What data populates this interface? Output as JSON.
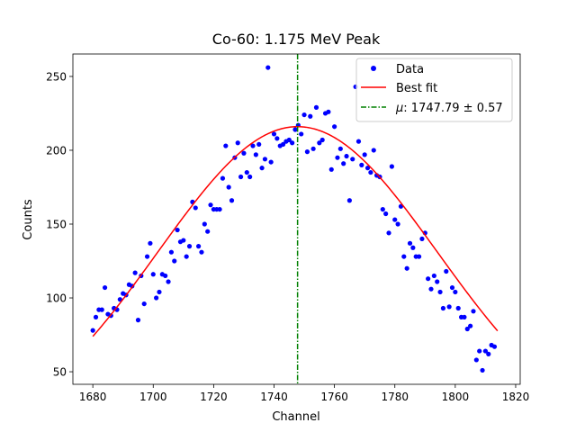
{
  "chart_data": {
    "type": "scatter",
    "title": "Co-60: 1.175 MeV Peak",
    "xlabel": "Channel",
    "ylabel": "Counts",
    "xlim": [
      1673.4,
      1821.5
    ],
    "ylim": [
      41.5,
      265.2
    ],
    "xticks": [
      1680,
      1700,
      1720,
      1740,
      1760,
      1780,
      1800,
      1820
    ],
    "yticks": [
      50,
      100,
      150,
      200,
      250
    ],
    "grid": false,
    "legend_placement": "top-right",
    "series": [
      {
        "name": "Data",
        "kind": "scatter",
        "color": "#0000ff",
        "x_start": 1680,
        "y": [
          78,
          87,
          92,
          92,
          107,
          89,
          88,
          93,
          92,
          99,
          103,
          102,
          109,
          108,
          117,
          85,
          115,
          96,
          128,
          137,
          116,
          100,
          104,
          116,
          115,
          111,
          131,
          125,
          146,
          138,
          139,
          128,
          135,
          165,
          161,
          135,
          131,
          150,
          145,
          163,
          160,
          160,
          160,
          181,
          203,
          175,
          166,
          195,
          205,
          182,
          198,
          185,
          182,
          203,
          197,
          204,
          188,
          194,
          256,
          192,
          211,
          208,
          203,
          204,
          206,
          207,
          205,
          214,
          217,
          211,
          224,
          199,
          223,
          201,
          229,
          205,
          207,
          225,
          226,
          187,
          216,
          195,
          201,
          191,
          196,
          166,
          194,
          243,
          206,
          190,
          197,
          188,
          185,
          200,
          183,
          182,
          160,
          157,
          144,
          189,
          153,
          150,
          162,
          128,
          120,
          137,
          134,
          128,
          128,
          140,
          144,
          113,
          106,
          115,
          111,
          104,
          93,
          118,
          94,
          107,
          104,
          93,
          87,
          87,
          79,
          81,
          91,
          58,
          64,
          51,
          64,
          62,
          68,
          67
        ]
      },
      {
        "name": "Best fit",
        "kind": "gaussian",
        "color": "#ff0000",
        "amplitude": 216,
        "mu": 1747.79,
        "sigma": 46.3,
        "x_range": [
          1680,
          1814
        ]
      },
      {
        "name": "μ: 1747.79 ± 0.57",
        "kind": "vline",
        "color": "#008000",
        "x": 1747.79
      }
    ],
    "legend": [
      {
        "label": "Data",
        "symbol": "dot"
      },
      {
        "label": "Best fit",
        "symbol": "line"
      },
      {
        "label_prefix": "μ",
        "label_rest": ": 1747.79 ± 0.57",
        "symbol": "dashdot"
      }
    ]
  }
}
